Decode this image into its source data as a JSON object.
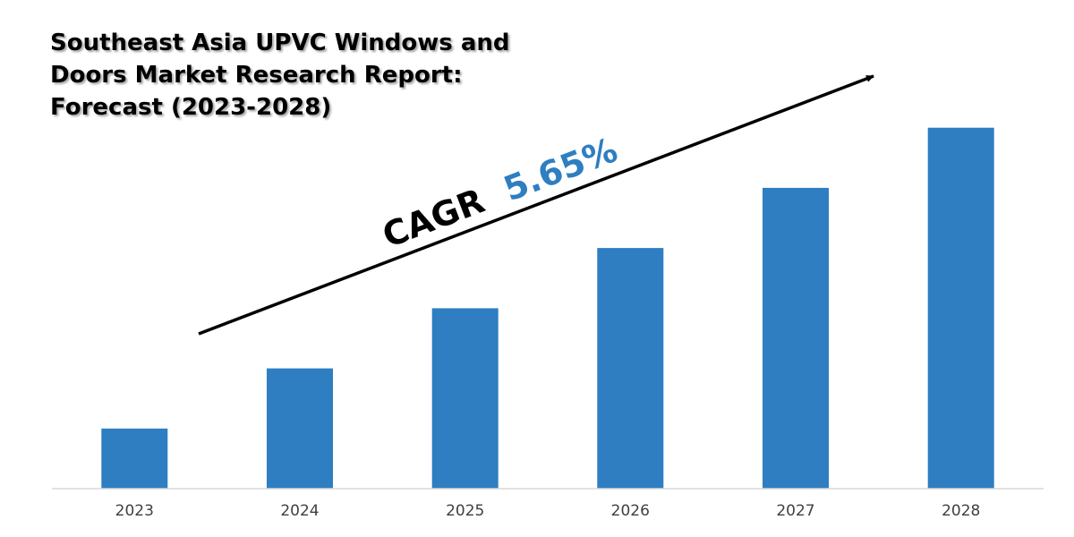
{
  "chart_data": {
    "type": "bar",
    "title": "Southeast Asia UPVC Windows and Doors Market Research Report: Forecast (2023-2028)",
    "categories": [
      "2023",
      "2024",
      "2025",
      "2026",
      "2027",
      "2028"
    ],
    "values": [
      1.0,
      2.0,
      3.0,
      4.0,
      5.0,
      6.0
    ],
    "ylim": [
      0,
      6.1
    ],
    "grid": false,
    "legend": "none",
    "bar_color": "#2E7EC1",
    "annotation": {
      "prefix": "CAGR",
      "value": "5.65%",
      "prefix_color": "#000000",
      "value_color": "#2E7EC1"
    }
  }
}
